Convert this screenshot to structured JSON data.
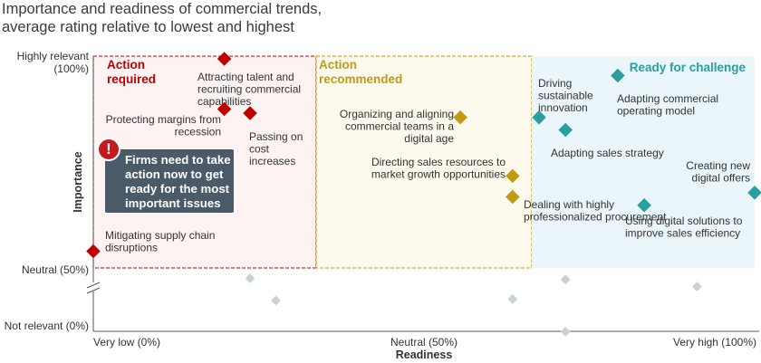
{
  "title_lines": [
    "Importance and readiness of commercial trends,",
    "average rating relative to lowest and highest"
  ],
  "callout": {
    "icon": "exclamation-icon",
    "lines": [
      "Firms need to take",
      "action now to get",
      "ready for the most",
      "important issues"
    ]
  },
  "chart_data": {
    "type": "scatter",
    "xlabel": "Readiness",
    "ylabel": "Importance",
    "x_ticks": [
      "Very low (0%)",
      "Neutral (50%)",
      "Very high (100%)"
    ],
    "y_ticks": [
      "Highly relevant (100%)",
      "Neutral (50%)",
      "Not relevant (0%)"
    ],
    "xlim": [
      0,
      100
    ],
    "ylim_upper": [
      50,
      100
    ],
    "ylim_lower": [
      0,
      50
    ],
    "y_axis_break": true,
    "zones": [
      {
        "label_lines": [
          "Action",
          "required"
        ],
        "x_range": [
          0,
          33.7
        ],
        "color": "#c00000"
      },
      {
        "label_lines": [
          "Action",
          "recommended"
        ],
        "x_range": [
          33.7,
          66.3
        ],
        "color": "#c09a10"
      },
      {
        "label_lines": [
          "Ready for challenge"
        ],
        "x_range": [
          66.3,
          100
        ],
        "color": "#2a9fa0"
      }
    ],
    "series": [
      {
        "zone": "Action required",
        "color": "#c00000",
        "points": [
          {
            "lines": [
              "Attracting talent and",
              "recruiting commercial",
              "capabilities"
            ],
            "x": 19.8,
            "y": 100
          },
          {
            "lines": [
              "Protecting margins from",
              "recession"
            ],
            "x": 19.8,
            "y": 88
          },
          {
            "lines": [
              "Passing on",
              "cost",
              "increases"
            ],
            "x": 23.7,
            "y": 87
          },
          {
            "lines": [
              "Mitigating supply chain",
              "disruptions"
            ],
            "x": 0,
            "y": 54
          }
        ]
      },
      {
        "zone": "Action recommended",
        "color": "#c09a10",
        "points": [
          {
            "lines": [
              "Organizing and aligning",
              "commercial teams in a",
              "digital age"
            ],
            "x": 55.5,
            "y": 86
          },
          {
            "lines": [
              "Directing sales resources to",
              "market growth opportunities"
            ],
            "x": 63.4,
            "y": 72
          },
          {
            "lines": [
              "Dealing with highly",
              "professionalized procurement"
            ],
            "x": 63.4,
            "y": 67
          }
        ]
      },
      {
        "zone": "Ready for challenge",
        "color": "#2a9fa0",
        "points": [
          {
            "lines": [
              "Driving",
              "sustainable",
              "innovation"
            ],
            "x": 67.4,
            "y": 86
          },
          {
            "lines": [
              "Adapting commercial",
              "operating model"
            ],
            "x": 79.3,
            "y": 96
          },
          {
            "lines": [
              "Adapting sales strategy"
            ],
            "x": 71.4,
            "y": 83
          },
          {
            "lines": [
              "Creating new",
              "digital offers"
            ],
            "x": 100,
            "y": 68
          },
          {
            "lines": [
              "Using digital solutions to",
              "improve sales efficiency"
            ],
            "x": 83.3,
            "y": 65
          }
        ]
      },
      {
        "zone": "below neutral",
        "color": "#c8d0d8",
        "points": [
          {
            "x": 23.7,
            "y": 41
          },
          {
            "x": 27.6,
            "y": 22
          },
          {
            "x": 63.4,
            "y": 23
          },
          {
            "x": 71.4,
            "y": 40
          },
          {
            "x": 91.3,
            "y": 34
          },
          {
            "x": 71.4,
            "y": -5
          }
        ]
      }
    ]
  }
}
